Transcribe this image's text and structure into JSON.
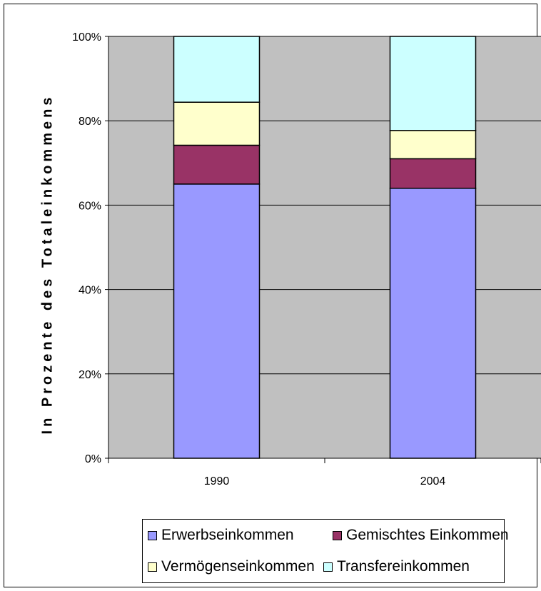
{
  "chart_data": {
    "type": "bar",
    "stacked": true,
    "percent_stacked": true,
    "categories": [
      "1990",
      "2004"
    ],
    "series": [
      {
        "name": "Erwerbseinkommen",
        "color": "#9999ff",
        "values": [
          65.0,
          64.0
        ]
      },
      {
        "name": "Gemischtes Einkommen",
        "color": "#993366",
        "values": [
          9.2,
          7.0
        ]
      },
      {
        "name": "Vermögenseinkommen",
        "color": "#ffffcc",
        "values": [
          10.2,
          6.7
        ]
      },
      {
        "name": "Transfereinkommen",
        "color": "#ccffff",
        "values": [
          15.6,
          22.3
        ]
      }
    ],
    "ylabel": "In Prozente des Totaleinkommens",
    "xlabel": "",
    "ylim": [
      0,
      100
    ],
    "yticks": [
      "0%",
      "20%",
      "40%",
      "60%",
      "80%",
      "100%"
    ],
    "grid": true,
    "legend_position": "bottom",
    "plot_background": "#c0c0c0"
  }
}
